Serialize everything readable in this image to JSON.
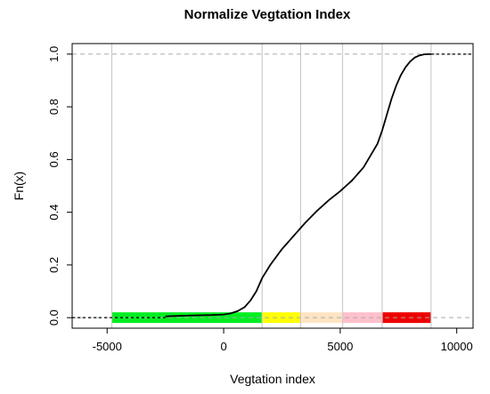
{
  "chart_data": {
    "type": "line",
    "title": "Normalize Vegtation Index",
    "xlabel": "Vegtation index",
    "ylabel": "Fn(x)",
    "xlim": [
      -6500,
      10700
    ],
    "ylim": [
      -0.04,
      1.04
    ],
    "x_ticks": [
      -5000,
      0,
      5000,
      10000
    ],
    "y_ticks": [
      0.0,
      0.2,
      0.4,
      0.6,
      0.8,
      1.0
    ],
    "x_tick_labels": [
      "-5000",
      "0",
      "5000",
      "10000"
    ],
    "y_tick_labels": [
      "0.0",
      "0.2",
      "0.4",
      "0.6",
      "0.8",
      "1.0"
    ],
    "horizontal_dashed_lines": [
      0.0,
      1.0
    ],
    "vertical_lines": [
      -4800,
      1650,
      3300,
      5100,
      6800,
      8900
    ],
    "color_bands": [
      {
        "from": -4800,
        "to": 1650,
        "color": "#00ee22"
      },
      {
        "from": 1650,
        "to": 3300,
        "color": "#ffff00"
      },
      {
        "from": 3300,
        "to": 5100,
        "color": "#ffe4c4"
      },
      {
        "from": 5100,
        "to": 6800,
        "color": "#ffc0cb"
      },
      {
        "from": 6800,
        "to": 8900,
        "color": "#ee0000"
      }
    ],
    "series": [
      {
        "x": [
          -2500,
          -1500,
          -500,
          0,
          300,
          600,
          900,
          1150,
          1400,
          1650,
          2000,
          2500,
          3000,
          3500,
          4000,
          4500,
          5000,
          5500,
          6000,
          6300,
          6600,
          6800,
          7000,
          7200,
          7400,
          7600,
          7800,
          8000,
          8200,
          8400,
          8600,
          8750,
          8900
        ],
        "y": [
          0.005,
          0.008,
          0.01,
          0.012,
          0.016,
          0.025,
          0.04,
          0.065,
          0.1,
          0.15,
          0.2,
          0.26,
          0.31,
          0.36,
          0.405,
          0.445,
          0.48,
          0.52,
          0.57,
          0.615,
          0.66,
          0.71,
          0.77,
          0.83,
          0.88,
          0.92,
          0.95,
          0.972,
          0.987,
          0.995,
          0.999,
          1.0,
          1.0
        ]
      }
    ],
    "line_color": "#000000",
    "band_color": "#cccccc"
  }
}
